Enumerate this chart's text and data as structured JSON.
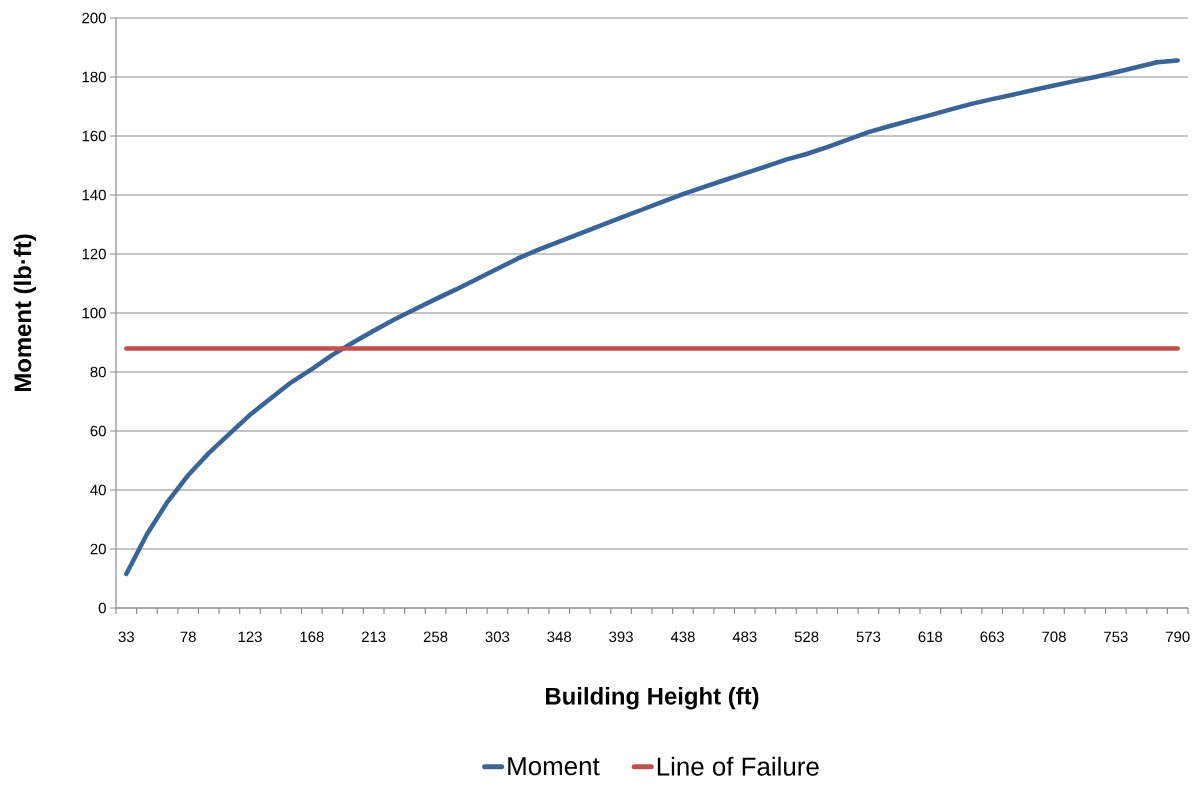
{
  "chart_data": {
    "type": "line",
    "xlabel": "Building Height (ft)",
    "ylabel": "Moment (lb·ft)",
    "categories": [
      "33",
      null,
      null,
      "78",
      null,
      null,
      "123",
      null,
      null,
      "168",
      null,
      null,
      "213",
      null,
      null,
      "258",
      null,
      null,
      "303",
      null,
      null,
      "348",
      null,
      null,
      "393",
      null,
      null,
      "438",
      null,
      null,
      "483",
      null,
      null,
      "528",
      null,
      null,
      "573",
      null,
      null,
      "618",
      null,
      null,
      "663",
      null,
      null,
      "708",
      null,
      null,
      "753",
      null,
      null,
      "790"
    ],
    "series": [
      {
        "name": "Moment",
        "color": "#3a6496",
        "values": [
          11.5,
          25,
          36,
          45,
          52.5,
          59,
          65.5,
          71,
          76.5,
          81,
          85.8,
          90,
          94,
          97.8,
          101.3,
          104.7,
          108,
          111.5,
          115,
          118.5,
          121.5,
          124.2,
          126.9,
          129.6,
          132.3,
          135,
          137.7,
          140.3,
          142.7,
          145,
          147.3,
          149.6,
          152,
          153.9,
          156.2,
          158.8,
          161.3,
          163.3,
          165.2,
          167.1,
          169,
          170.9,
          172.5,
          174,
          175.6,
          177.1,
          178.6,
          180,
          181.6,
          183.3,
          185,
          185.6
        ]
      },
      {
        "name": "Line of Failure",
        "color": "#c0504d",
        "values": [
          88,
          88,
          88,
          88,
          88,
          88,
          88,
          88,
          88,
          88,
          88,
          88,
          88,
          88,
          88,
          88,
          88,
          88,
          88,
          88,
          88,
          88,
          88,
          88,
          88,
          88,
          88,
          88,
          88,
          88,
          88,
          88,
          88,
          88,
          88,
          88,
          88,
          88,
          88,
          88,
          88,
          88,
          88,
          88,
          88,
          88,
          88,
          88,
          88,
          88,
          88,
          88
        ]
      }
    ],
    "ylim": [
      0,
      200
    ],
    "yticks": [
      0,
      20,
      40,
      60,
      80,
      100,
      120,
      140,
      160,
      180,
      200
    ],
    "grid": "y",
    "legend": "bottom",
    "marker": "none",
    "line_style": "solid"
  }
}
